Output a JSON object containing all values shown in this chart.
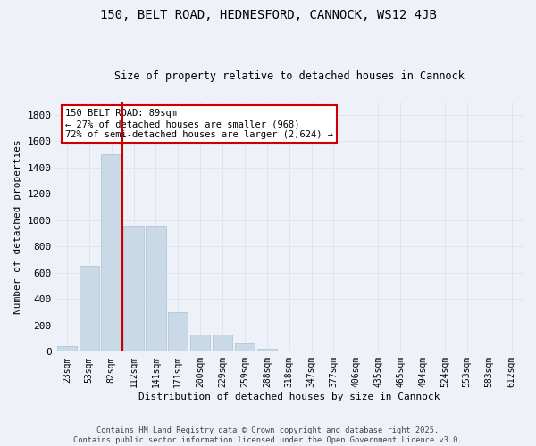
{
  "title": "150, BELT ROAD, HEDNESFORD, CANNOCK, WS12 4JB",
  "subtitle": "Size of property relative to detached houses in Cannock",
  "xlabel": "Distribution of detached houses by size in Cannock",
  "ylabel": "Number of detached properties",
  "categories": [
    "23sqm",
    "53sqm",
    "82sqm",
    "112sqm",
    "141sqm",
    "171sqm",
    "200sqm",
    "229sqm",
    "259sqm",
    "288sqm",
    "318sqm",
    "347sqm",
    "377sqm",
    "406sqm",
    "435sqm",
    "465sqm",
    "494sqm",
    "524sqm",
    "553sqm",
    "583sqm",
    "612sqm"
  ],
  "values": [
    45,
    650,
    1500,
    955,
    955,
    300,
    130,
    130,
    65,
    25,
    12,
    5,
    3,
    1,
    1,
    0,
    0,
    0,
    0,
    0,
    0
  ],
  "bar_color": "#c9d9e8",
  "bar_edge_color": "#a8c0d4",
  "redline_index": 2,
  "annotation_title": "150 BELT ROAD: 89sqm",
  "annotation_line1": "← 27% of detached houses are smaller (968)",
  "annotation_line2": "72% of semi-detached houses are larger (2,624) →",
  "annotation_box_color": "#ffffff",
  "annotation_box_edge": "#cc0000",
  "redline_color": "#cc0000",
  "grid_color": "#dce6f0",
  "background_color": "#eef2f8",
  "ylim": [
    0,
    1900
  ],
  "yticks": [
    0,
    200,
    400,
    600,
    800,
    1000,
    1200,
    1400,
    1600,
    1800
  ],
  "footer_line1": "Contains HM Land Registry data © Crown copyright and database right 2025.",
  "footer_line2": "Contains public sector information licensed under the Open Government Licence v3.0."
}
